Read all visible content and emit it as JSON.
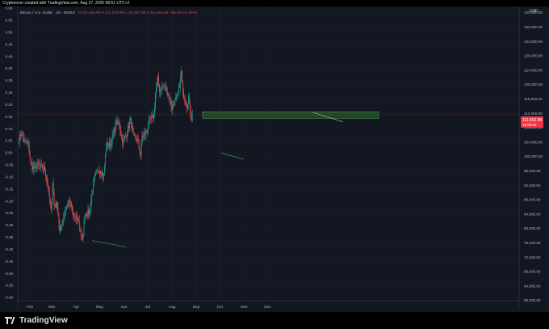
{
  "header": {
    "caption": "Cryptorover created with TradingView.com, Aug 27, 2025 08:51 UTC+2"
  },
  "legend": {
    "symbol": "Bitcoin / U.S. Dollar · 1D · INDEX",
    "ohlc": "O 111,654.96  H 112,376.95  L 110,397.65  C 111,562.86  −98.49 (−0.10%)"
  },
  "footer": {
    "brand": "TradingView"
  },
  "chart_data": {
    "type": "candlestick",
    "currency_label": "USD",
    "last_price_label": "111,562.86",
    "countdown_label": "15:08:52",
    "left_axis": {
      "ticks": [
        "0.60",
        "0.55",
        "0.50",
        "0.45",
        "0.40",
        "0.35",
        "0.30",
        "0.25",
        "0.20",
        "0.15",
        "0.10",
        "0.05",
        "0.00",
        "-0.05",
        "-0.10",
        "-0.15",
        "-0.20",
        "-0.25",
        "-0.30",
        "-0.35",
        "-0.40",
        "-0.45",
        "-0.50",
        "-0.55",
        "-0.60"
      ]
    },
    "right_axis": {
      "ticks": [
        "140,000.00",
        "136,000.00",
        "132,000.00",
        "128,000.00",
        "124,000.00",
        "120,000.00",
        "116,000.00",
        "112,000.00",
        "108,000.00",
        "104,000.00",
        "100,000.00",
        "96,000.00",
        "92,000.00",
        "88,000.00",
        "84,000.00",
        "80,000.00",
        "76,000.00",
        "72,000.00",
        "68,000.00",
        "64,000.00",
        "60,000.00"
      ],
      "ylim": [
        60000,
        140000
      ]
    },
    "x_axis": {
      "ticks": [
        "Feb",
        "Mar",
        "Apr",
        "May",
        "Jun",
        "Jul",
        "Aug",
        "Sep",
        "Oct",
        "Nov",
        "Dec"
      ]
    },
    "price_path": [
      [
        "2025-01-18",
        105000
      ],
      [
        "2025-01-21",
        106500
      ],
      [
        "2025-01-25",
        104000
      ],
      [
        "2025-01-30",
        103500
      ],
      [
        "2025-02-02",
        98000
      ],
      [
        "2025-02-06",
        96500
      ],
      [
        "2025-02-10",
        97500
      ],
      [
        "2025-02-15",
        97000
      ],
      [
        "2025-02-20",
        96500
      ],
      [
        "2025-02-24",
        91500
      ],
      [
        "2025-02-28",
        84500
      ],
      [
        "2025-03-02",
        93000
      ],
      [
        "2025-03-04",
        86500
      ],
      [
        "2025-03-08",
        86500
      ],
      [
        "2025-03-11",
        79000
      ],
      [
        "2025-03-16",
        83500
      ],
      [
        "2025-03-20",
        86000
      ],
      [
        "2025-03-24",
        87500
      ],
      [
        "2025-03-28",
        84000
      ],
      [
        "2025-03-31",
        82500
      ],
      [
        "2025-04-03",
        83000
      ],
      [
        "2025-04-07",
        78500
      ],
      [
        "2025-04-09",
        76500
      ],
      [
        "2025-04-12",
        84000
      ],
      [
        "2025-04-18",
        84500
      ],
      [
        "2025-04-22",
        91000
      ],
      [
        "2025-04-26",
        95000
      ],
      [
        "2025-05-01",
        96500
      ],
      [
        "2025-05-06",
        94500
      ],
      [
        "2025-05-09",
        103000
      ],
      [
        "2025-05-15",
        103500
      ],
      [
        "2025-05-22",
        109500
      ],
      [
        "2025-05-26",
        109000
      ],
      [
        "2025-05-30",
        104000
      ],
      [
        "2025-06-03",
        105500
      ],
      [
        "2025-06-09",
        110000
      ],
      [
        "2025-06-13",
        105500
      ],
      [
        "2025-06-18",
        104500
      ],
      [
        "2025-06-22",
        100500
      ],
      [
        "2025-06-24",
        105500
      ],
      [
        "2025-06-30",
        107000
      ],
      [
        "2025-07-03",
        109500
      ],
      [
        "2025-07-09",
        111500
      ],
      [
        "2025-07-11",
        117500
      ],
      [
        "2025-07-14",
        121500
      ],
      [
        "2025-07-16",
        118500
      ],
      [
        "2025-07-22",
        119500
      ],
      [
        "2025-07-26",
        118000
      ],
      [
        "2025-08-01",
        113500
      ],
      [
        "2025-08-04",
        115000
      ],
      [
        "2025-08-08",
        116500
      ],
      [
        "2025-08-11",
        120000
      ],
      [
        "2025-08-13",
        123500
      ],
      [
        "2025-08-15",
        117500
      ],
      [
        "2025-08-18",
        116000
      ],
      [
        "2025-08-20",
        114000
      ],
      [
        "2025-08-22",
        116500
      ],
      [
        "2025-08-24",
        113000
      ],
      [
        "2025-08-26",
        110500
      ],
      [
        "2025-08-27",
        111560
      ]
    ]
  }
}
